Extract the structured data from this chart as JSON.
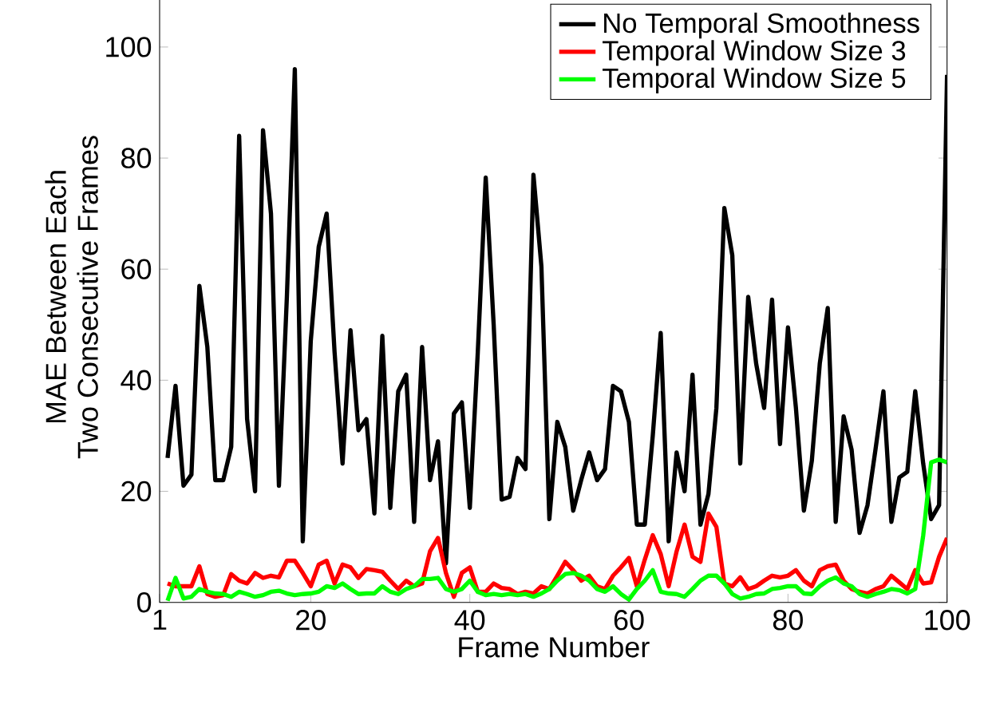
{
  "chart_data": {
    "type": "line",
    "xlabel": "Frame Number",
    "ylabel": "MAE Between Each\nTwo Consecutive Frames",
    "x": [
      2,
      3,
      4,
      5,
      6,
      7,
      8,
      9,
      10,
      11,
      12,
      13,
      14,
      15,
      16,
      17,
      18,
      19,
      20,
      21,
      22,
      23,
      24,
      25,
      26,
      27,
      28,
      29,
      30,
      31,
      32,
      33,
      34,
      35,
      36,
      37,
      38,
      39,
      40,
      41,
      42,
      43,
      44,
      45,
      46,
      47,
      48,
      49,
      50,
      51,
      52,
      53,
      54,
      55,
      56,
      57,
      58,
      59,
      60,
      61,
      62,
      63,
      64,
      65,
      66,
      67,
      68,
      69,
      70,
      71,
      72,
      73,
      74,
      75,
      76,
      77,
      78,
      79,
      80,
      81,
      82,
      83,
      84,
      85,
      86,
      87,
      88,
      89,
      90,
      91,
      92,
      93,
      94,
      95,
      96,
      97,
      98,
      99,
      100
    ],
    "series": [
      {
        "name": "No Temporal Smoothness",
        "color": "#000000",
        "values": [
          26,
          39,
          21,
          23,
          57,
          46,
          22,
          22,
          28,
          84,
          33,
          20,
          85,
          70,
          21,
          55,
          96,
          11,
          47,
          64,
          70,
          45,
          25,
          49,
          31,
          33,
          16,
          48,
          17,
          38,
          41,
          14.5,
          46,
          22,
          29,
          7,
          34,
          36,
          17,
          45,
          76.5,
          50,
          18.5,
          19,
          26,
          24,
          77,
          60.5,
          15,
          32.5,
          28,
          16.5,
          22,
          27,
          22,
          24,
          39,
          38,
          32.5,
          14,
          14,
          30,
          48.5,
          11,
          27,
          20,
          41,
          14,
          19.5,
          35,
          71,
          62.5,
          25,
          55,
          43,
          35,
          54.5,
          28.5,
          49.5,
          35,
          16.5,
          25.5,
          43,
          53,
          14.5,
          33.5,
          27.5,
          12.5,
          17.5,
          27.5,
          38,
          14.5,
          22.5,
          23.5,
          38,
          25,
          15,
          17.5,
          95
        ]
      },
      {
        "name": "Temporal Window Size 3",
        "color": "#ff0000",
        "values": [
          3.4,
          2.9,
          2.9,
          2.9,
          6.5,
          1.5,
          1,
          1.3,
          5.1,
          3.9,
          3.4,
          5.3,
          4.4,
          4.8,
          4.5,
          7.5,
          7.5,
          5.3,
          2.9,
          6.8,
          7.5,
          3.4,
          6.8,
          6.3,
          4.4,
          6,
          5.8,
          5.5,
          3.9,
          2.4,
          3.9,
          2.9,
          3.4,
          9.2,
          11.6,
          5.3,
          1,
          5.3,
          6.3,
          1.9,
          1.9,
          3.4,
          2.6,
          2.4,
          1.5,
          1.9,
          1.6,
          2.9,
          2.4,
          4.8,
          7.3,
          5.8,
          3.9,
          4.8,
          2.9,
          2.4,
          4.8,
          6.3,
          8,
          2.9,
          7.7,
          12.1,
          8.7,
          2.9,
          9.2,
          14,
          8.2,
          7.3,
          16,
          13.6,
          3.4,
          2.9,
          4.5,
          2.4,
          2.9,
          3.9,
          4.8,
          4.5,
          4.8,
          5.8,
          3.9,
          2.9,
          5.8,
          6.5,
          6.8,
          3.9,
          2.4,
          1.9,
          1.6,
          2.4,
          2.9,
          4.8,
          3.6,
          2.4,
          5.8,
          3.4,
          3.6,
          8.2,
          11.6
        ]
      },
      {
        "name": "Temporal Window Size 5",
        "color": "#00ff00",
        "values": [
          0.3,
          4.4,
          0.7,
          1,
          2.4,
          1.9,
          1.6,
          1.5,
          1,
          1.9,
          1.5,
          1,
          1.3,
          1.9,
          2.1,
          1.6,
          1.3,
          1.5,
          1.6,
          1.9,
          2.9,
          2.6,
          3.4,
          2.4,
          1.5,
          1.6,
          1.6,
          2.9,
          1.9,
          1.5,
          2.4,
          2.9,
          4.2,
          4.2,
          4.4,
          2.4,
          1.9,
          2.4,
          3.9,
          1.9,
          1.3,
          1.5,
          1.3,
          1.5,
          1.3,
          1.5,
          1,
          1.6,
          2.4,
          3.9,
          5.1,
          5.3,
          4.8,
          3.9,
          2.4,
          1.9,
          2.9,
          1.5,
          0.5,
          2.4,
          3.9,
          5.8,
          1.9,
          1.6,
          1.5,
          1,
          2.4,
          3.9,
          4.8,
          4.8,
          3.4,
          1.5,
          0.7,
          1,
          1.5,
          1.6,
          2.4,
          2.6,
          2.9,
          2.9,
          1.6,
          1.5,
          2.9,
          3.9,
          4.5,
          3.4,
          2.9,
          1.5,
          1,
          1.5,
          1.9,
          2.4,
          2.2,
          1.6,
          2.4,
          12,
          25.2,
          25.7,
          25.2
        ]
      }
    ],
    "xlim": [
      1,
      100
    ],
    "xticks": [
      1,
      20,
      40,
      60,
      80,
      100
    ],
    "ylim": [
      0,
      110
    ],
    "yticks": [
      0,
      20,
      40,
      60,
      80,
      100
    ],
    "legend": "top right",
    "line_style": "solid",
    "marker": "none"
  }
}
